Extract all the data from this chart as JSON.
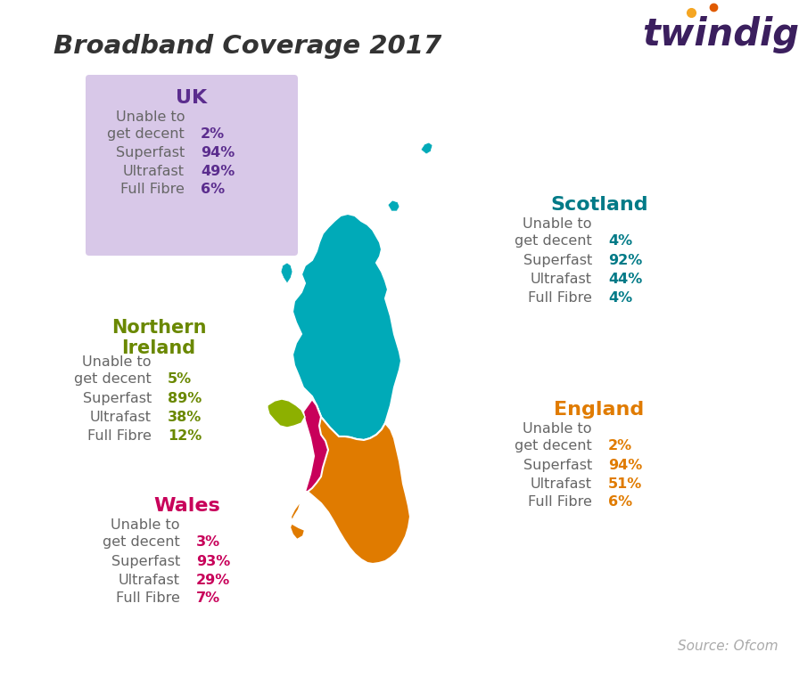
{
  "background_color": "#ffffff",
  "gray_text": "#666666",
  "source_text": "Source: Ofcom",
  "title_text": "Broadband Coverage 2017",
  "uk_box_color": "#d8c8e8",
  "regions": {
    "Scotland": {
      "color": "#00aab8",
      "title_color": "#007a87",
      "label": "Scotland",
      "unable": "4%",
      "superfast": "92%",
      "ultrafast": "44%",
      "fullfibre": "4%"
    },
    "England": {
      "color": "#e07b00",
      "title_color": "#e07b00",
      "label": "England",
      "unable": "2%",
      "superfast": "94%",
      "ultrafast": "51%",
      "fullfibre": "6%"
    },
    "Wales": {
      "color": "#c8005a",
      "title_color": "#c8005a",
      "label": "Wales",
      "unable": "3%",
      "superfast": "93%",
      "ultrafast": "29%",
      "fullfibre": "7%"
    },
    "NI": {
      "color": "#8db000",
      "title_color": "#6a8800",
      "label": "Northern\nIreland",
      "unable": "5%",
      "superfast": "89%",
      "ultrafast": "38%",
      "fullfibre": "12%"
    },
    "UK": {
      "title_color": "#5b2d8e",
      "label": "UK",
      "unable": "2%",
      "superfast": "94%",
      "ultrafast": "49%",
      "fullfibre": "6%"
    }
  }
}
